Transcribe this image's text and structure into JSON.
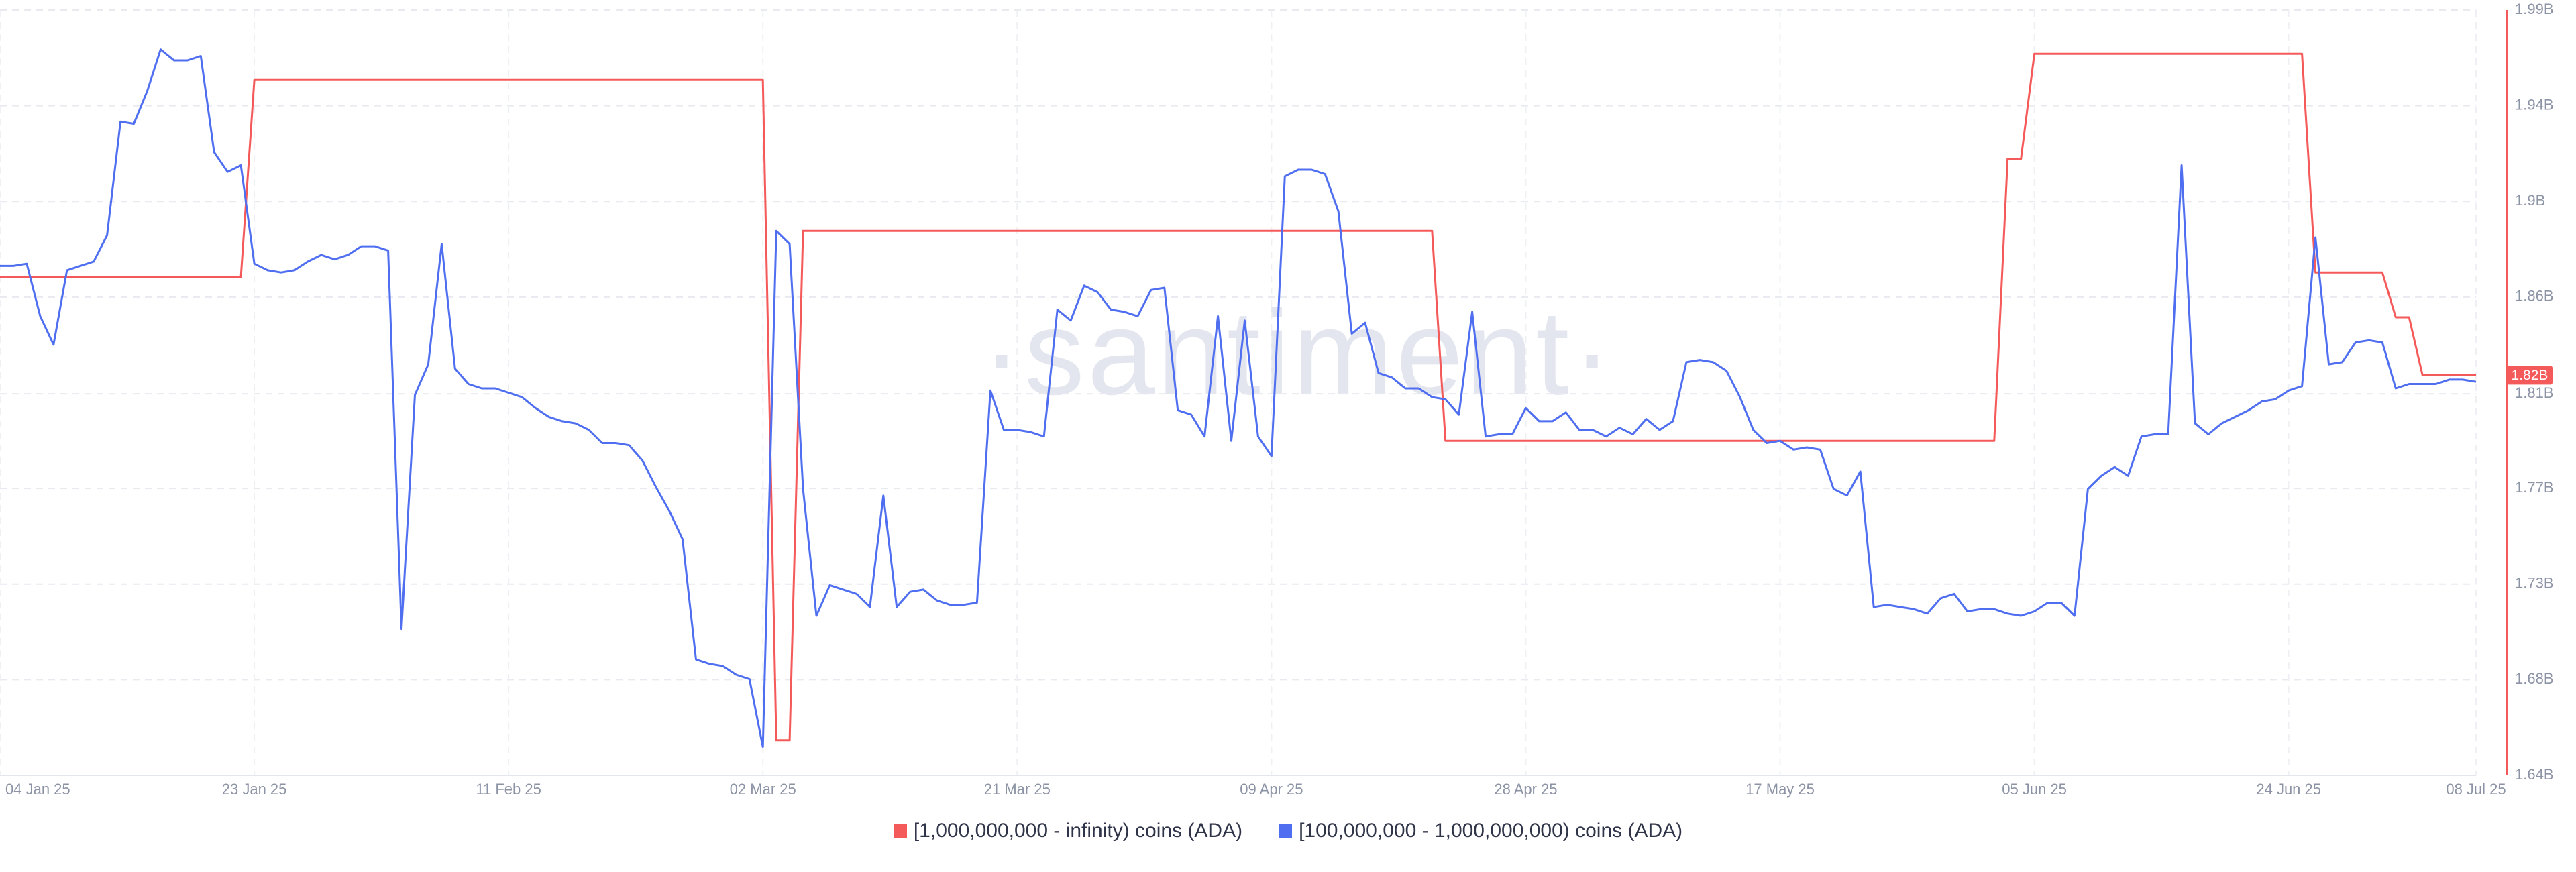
{
  "chart_data": {
    "type": "line",
    "watermark": "·santiment·",
    "current_label": "1.82B",
    "grid": true,
    "xlim": [
      "2025-01-04",
      "2025-07-08"
    ],
    "xticks": [
      {
        "value": "2025-01-04",
        "label": "04 Jan 25"
      },
      {
        "value": "2025-01-23",
        "label": "23 Jan 25"
      },
      {
        "value": "2025-02-11",
        "label": "11 Feb 25"
      },
      {
        "value": "2025-03-02",
        "label": "02 Mar 25"
      },
      {
        "value": "2025-03-21",
        "label": "21 Mar 25"
      },
      {
        "value": "2025-04-09",
        "label": "09 Apr 25"
      },
      {
        "value": "2025-04-28",
        "label": "28 Apr 25"
      },
      {
        "value": "2025-05-17",
        "label": "17 May 25"
      },
      {
        "value": "2025-06-05",
        "label": "05 Jun 25"
      },
      {
        "value": "2025-06-24",
        "label": "24 Jun 25"
      },
      {
        "value": "2025-07-08",
        "label": "08 Jul 25"
      }
    ],
    "ylim": [
      1640000000.0,
      1990000000.0
    ],
    "yticks": [
      {
        "value": 1640000000.0,
        "label": "1.64B"
      },
      {
        "value": 1683750000.0,
        "label": "1.68B"
      },
      {
        "value": 1727500000.0,
        "label": "1.73B"
      },
      {
        "value": 1771250000.0,
        "label": "1.77B"
      },
      {
        "value": 1814500000.0,
        "label": "1.81B"
      },
      {
        "value": 1858750000.0,
        "label": "1.86B"
      },
      {
        "value": 1902500000.0,
        "label": "1.9B"
      },
      {
        "value": 1946250000.0,
        "label": "1.94B"
      },
      {
        "value": 1990000000.0,
        "label": "1.99B"
      }
    ],
    "x": [
      "2025-01-04",
      "2025-01-05",
      "2025-01-06",
      "2025-01-07",
      "2025-01-08",
      "2025-01-09",
      "2025-01-10",
      "2025-01-11",
      "2025-01-12",
      "2025-01-13",
      "2025-01-14",
      "2025-01-15",
      "2025-01-16",
      "2025-01-17",
      "2025-01-18",
      "2025-01-19",
      "2025-01-20",
      "2025-01-21",
      "2025-01-22",
      "2025-01-23",
      "2025-01-24",
      "2025-01-25",
      "2025-01-26",
      "2025-01-27",
      "2025-01-28",
      "2025-01-29",
      "2025-01-30",
      "2025-01-31",
      "2025-02-01",
      "2025-02-02",
      "2025-02-03",
      "2025-02-04",
      "2025-02-05",
      "2025-02-06",
      "2025-02-07",
      "2025-02-08",
      "2025-02-09",
      "2025-02-10",
      "2025-02-11",
      "2025-02-12",
      "2025-02-13",
      "2025-02-14",
      "2025-02-15",
      "2025-02-16",
      "2025-02-17",
      "2025-02-18",
      "2025-02-19",
      "2025-02-20",
      "2025-02-21",
      "2025-02-22",
      "2025-02-23",
      "2025-02-24",
      "2025-02-25",
      "2025-02-26",
      "2025-02-27",
      "2025-02-28",
      "2025-03-01",
      "2025-03-02",
      "2025-03-03",
      "2025-03-04",
      "2025-03-05",
      "2025-03-06",
      "2025-03-07",
      "2025-03-08",
      "2025-03-09",
      "2025-03-10",
      "2025-03-11",
      "2025-03-12",
      "2025-03-13",
      "2025-03-14",
      "2025-03-15",
      "2025-03-16",
      "2025-03-17",
      "2025-03-18",
      "2025-03-19",
      "2025-03-20",
      "2025-03-21",
      "2025-03-22",
      "2025-03-23",
      "2025-03-24",
      "2025-03-25",
      "2025-03-26",
      "2025-03-27",
      "2025-03-28",
      "2025-03-29",
      "2025-03-30",
      "2025-03-31",
      "2025-04-01",
      "2025-04-02",
      "2025-04-03",
      "2025-04-04",
      "2025-04-05",
      "2025-04-06",
      "2025-04-07",
      "2025-04-08",
      "2025-04-09",
      "2025-04-10",
      "2025-04-11",
      "2025-04-12",
      "2025-04-13",
      "2025-04-14",
      "2025-04-15",
      "2025-04-16",
      "2025-04-17",
      "2025-04-18",
      "2025-04-19",
      "2025-04-20",
      "2025-04-21",
      "2025-04-22",
      "2025-04-23",
      "2025-04-24",
      "2025-04-25",
      "2025-04-26",
      "2025-04-27",
      "2025-04-28",
      "2025-04-29",
      "2025-04-30",
      "2025-05-01",
      "2025-05-02",
      "2025-05-03",
      "2025-05-04",
      "2025-05-05",
      "2025-05-06",
      "2025-05-07",
      "2025-05-08",
      "2025-05-09",
      "2025-05-10",
      "2025-05-11",
      "2025-05-12",
      "2025-05-13",
      "2025-05-14",
      "2025-05-15",
      "2025-05-16",
      "2025-05-17",
      "2025-05-18",
      "2025-05-19",
      "2025-05-20",
      "2025-05-21",
      "2025-05-22",
      "2025-05-23",
      "2025-05-24",
      "2025-05-25",
      "2025-05-26",
      "2025-05-27",
      "2025-05-28",
      "2025-05-29",
      "2025-05-30",
      "2025-05-31",
      "2025-06-01",
      "2025-06-02",
      "2025-06-03",
      "2025-06-04",
      "2025-06-05",
      "2025-06-06",
      "2025-06-07",
      "2025-06-08",
      "2025-06-09",
      "2025-06-10",
      "2025-06-11",
      "2025-06-12",
      "2025-06-13",
      "2025-06-14",
      "2025-06-15",
      "2025-06-16",
      "2025-06-17",
      "2025-06-18",
      "2025-06-19",
      "2025-06-20",
      "2025-06-21",
      "2025-06-22",
      "2025-06-23",
      "2025-06-24",
      "2025-06-25",
      "2025-06-26",
      "2025-06-27",
      "2025-06-28",
      "2025-06-29",
      "2025-06-30",
      "2025-07-01",
      "2025-07-02",
      "2025-07-03",
      "2025-07-04",
      "2025-07-05",
      "2025-07-06",
      "2025-07-07",
      "2025-07-08"
    ],
    "series": [
      {
        "name": "[1,000,000,000 - infinity) coins (ADA)",
        "color": "#f55a5a",
        "x": [
          "2025-01-04",
          "2025-01-22",
          "2025-01-23",
          "2025-03-02",
          "2025-03-03",
          "2025-03-04",
          "2025-03-05",
          "2025-04-21",
          "2025-04-22",
          "2025-06-02",
          "2025-06-03",
          "2025-06-04",
          "2025-06-05",
          "2025-06-25",
          "2025-06-26",
          "2025-07-01",
          "2025-07-02",
          "2025-07-03",
          "2025-07-04",
          "2025-07-08"
        ],
        "values": [
          1868000000.0,
          1868000000.0,
          1958000000.0,
          1958000000.0,
          1656000000.0,
          1656000000.0,
          1889000000.0,
          1889000000.0,
          1793000000.0,
          1793000000.0,
          1922000000.0,
          1922000000.0,
          1970000000.0,
          1970000000.0,
          1870000000.0,
          1870000000.0,
          1849500000.0,
          1849500000.0,
          1823000000.0,
          1823000000.0
        ]
      },
      {
        "name": "[100,000,000 - 1,000,000,000) coins (ADA)",
        "color": "#4f6ff0",
        "values": [
          1873000000.0,
          1873000000.0,
          1874000000.0,
          1850000000.0,
          1837000000.0,
          1871000000.0,
          1873000000.0,
          1875000000.0,
          1887000000.0,
          1939000000.0,
          1938000000.0,
          1953000000.0,
          1972000000.0,
          1967000000.0,
          1967000000.0,
          1969000000.0,
          1925000000.0,
          1916000000.0,
          1919000000.0,
          1874000000.0,
          1871000000.0,
          1870000000.0,
          1871000000.0,
          1875000000.0,
          1878000000.0,
          1876000000.0,
          1878000000.0,
          1882000000.0,
          1882000000.0,
          1880000000.0,
          1707000000.0,
          1814000000.0,
          1828000000.0,
          1883000000.0,
          1826000000.0,
          1819000000.0,
          1817000000.0,
          1817000000.0,
          1815000000.0,
          1813000000.0,
          1808000000.0,
          1804000000.0,
          1802000000.0,
          1801000000.0,
          1798000000.0,
          1792000000.0,
          1792000000.0,
          1791000000.0,
          1784000000.0,
          1772000000.0,
          1761000000.0,
          1748000000.0,
          1693000000.0,
          1691000000.0,
          1690000000.0,
          1686000000.0,
          1684000000.0,
          1653000000.0,
          1889000000.0,
          1883000000.0,
          1771000000.0,
          1713000000.0,
          1727000000.0,
          1725000000.0,
          1723000000.0,
          1717000000.0,
          1768000000.0,
          1717000000.0,
          1724000000.0,
          1725000000.0,
          1720000000.0,
          1718000000.0,
          1718000000.0,
          1719000000.0,
          1816000000.0,
          1798000000.0,
          1798000000.0,
          1797000000.0,
          1795000000.0,
          1853000000.0,
          1848000000.0,
          1864000000.0,
          1861000000.0,
          1853000000.0,
          1852000000.0,
          1850000000.0,
          1862000000.0,
          1863000000.0,
          1807000000.0,
          1805000000.0,
          1795000000.0,
          1850000000.0,
          1793000000.0,
          1848000000.0,
          1795000000.0,
          1786000000.0,
          1914000000.0,
          1917000000.0,
          1917000000.0,
          1915000000.0,
          1898000000.0,
          1842000000.0,
          1847000000.0,
          1824000000.0,
          1822000000.0,
          1817000000.0,
          1817000000.0,
          1813000000.0,
          1812000000.0,
          1805000000.0,
          1852000000.0,
          1795000000.0,
          1796000000.0,
          1796000000.0,
          1808000000.0,
          1802000000.0,
          1802000000.0,
          1806000000.0,
          1798000000.0,
          1798000000.0,
          1795000000.0,
          1799000000.0,
          1796000000.0,
          1803000000.0,
          1798000000.0,
          1802000000.0,
          1829000000.0,
          1830000000.0,
          1829000000.0,
          1825000000.0,
          1813000000.0,
          1798000000.0,
          1792000000.0,
          1793000000.0,
          1789000000.0,
          1790000000.0,
          1789000000.0,
          1771000000.0,
          1768000000.0,
          1779000000.0,
          1717000000.0,
          1718000000.0,
          1717000000.0,
          1716000000.0,
          1714000000.0,
          1721000000.0,
          1723000000.0,
          1715000000.0,
          1716000000.0,
          1716000000.0,
          1714000000.0,
          1713000000.0,
          1715000000.0,
          1719000000.0,
          1719000000.0,
          1713000000.0,
          1771000000.0,
          1777000000.0,
          1781000000.0,
          1777000000.0,
          1795000000.0,
          1796000000.0,
          1796000000.0,
          1919000000.0,
          1801000000.0,
          1796000000.0,
          1801000000.0,
          1804000000.0,
          1807000000.0,
          1811000000.0,
          1812000000.0,
          1816000000.0,
          1818000000.0,
          1886000000.0,
          1828000000.0,
          1829000000.0,
          1838000000.0,
          1839000000.0,
          1838000000.0,
          1817000000.0,
          1819000000.0,
          1819000000.0,
          1819000000.0,
          1821000000.0,
          1821000000.0,
          1820000000.0
        ]
      }
    ]
  }
}
